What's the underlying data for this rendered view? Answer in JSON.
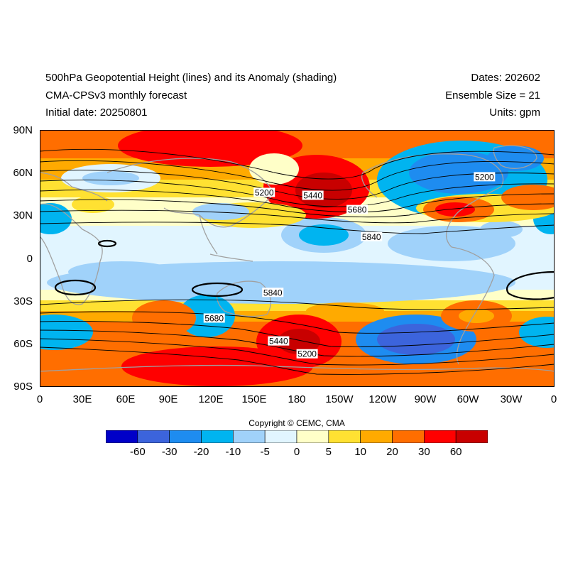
{
  "titles": {
    "left": [
      "500hPa Geopotential Height (lines) and its Anomaly (shading)",
      "CMA-CPSv3 monthly forecast",
      "Initial date: 20250801"
    ],
    "right": [
      "Dates: 202602",
      "Ensemble Size = 21",
      "Units: gpm"
    ]
  },
  "map": {
    "projection": "cylindrical-equidistant",
    "lon_range": [
      0,
      360
    ],
    "lat_range": [
      -90,
      90
    ],
    "y_ticks": [
      "90N",
      "60N",
      "30N",
      "0",
      "30S",
      "60S",
      "90S"
    ],
    "x_ticks": [
      "0",
      "30E",
      "60E",
      "90E",
      "120E",
      "150E",
      "180",
      "150W",
      "120W",
      "90W",
      "60W",
      "30W",
      "0"
    ],
    "contour_labels": [
      {
        "text": "5200",
        "lon": 157,
        "lat": 46
      },
      {
        "text": "5440",
        "lon": 191,
        "lat": 44
      },
      {
        "text": "5680",
        "lon": 222,
        "lat": 34
      },
      {
        "text": "5840",
        "lon": 232,
        "lat": 15
      },
      {
        "text": "5200",
        "lon": 311,
        "lat": 57
      },
      {
        "text": "5840",
        "lon": 163,
        "lat": -24
      },
      {
        "text": "5680",
        "lon": 122,
        "lat": -42
      },
      {
        "text": "5440",
        "lon": 167,
        "lat": -58
      },
      {
        "text": "5200",
        "lon": 187,
        "lat": -67
      }
    ]
  },
  "colorbar": {
    "colors": [
      "#0000c8",
      "#3c64dc",
      "#1e8cf0",
      "#00b4f0",
      "#a0d2fa",
      "#e1f5ff",
      "#ffffc8",
      "#ffe132",
      "#ffaa00",
      "#ff6e00",
      "#ff0000",
      "#c80000"
    ],
    "labels": [
      "-60",
      "-30",
      "-20",
      "-10",
      "-5",
      "0",
      "5",
      "10",
      "20",
      "30",
      "60"
    ]
  },
  "copyright": "Copyright © CEMC, CMA"
}
